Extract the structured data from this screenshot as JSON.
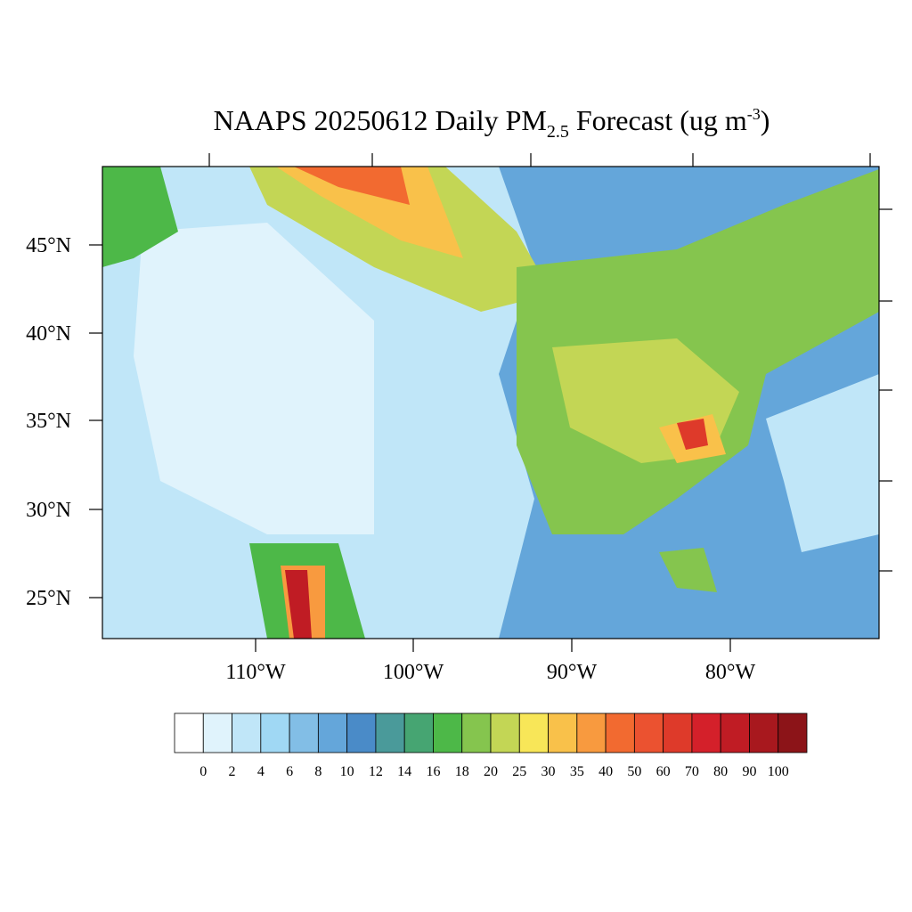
{
  "title": {
    "main": "NAAPS 20250612 Daily PM",
    "sub": "2.5",
    "rest": " Forecast (ug m",
    "sup": "-3",
    "end": ")"
  },
  "lat_labels": [
    "45°N",
    "40°N",
    "35°N",
    "30°N",
    "25°N"
  ],
  "lon_labels": [
    "110°W",
    "100°W",
    "90°W",
    "80°W"
  ],
  "colorbar": {
    "colors": [
      "#ffffff",
      "#e0f3fc",
      "#c0e6f8",
      "#a0d8f4",
      "#82bee6",
      "#64a6da",
      "#4a8bc8",
      "#4a9a9a",
      "#46a572",
      "#4db848",
      "#85c54e",
      "#c3d655",
      "#f8e658",
      "#f9c14a",
      "#f89a3f",
      "#f26a30",
      "#eb5230",
      "#de3a2a",
      "#d4202a",
      "#c01c24",
      "#a8181e",
      "#8c1418"
    ],
    "labels": [
      "0",
      "2",
      "4",
      "6",
      "8",
      "10",
      "12",
      "14",
      "16",
      "18",
      "20",
      "25",
      "30",
      "35",
      "40",
      "50",
      "60",
      "70",
      "80",
      "90",
      "100"
    ]
  }
}
